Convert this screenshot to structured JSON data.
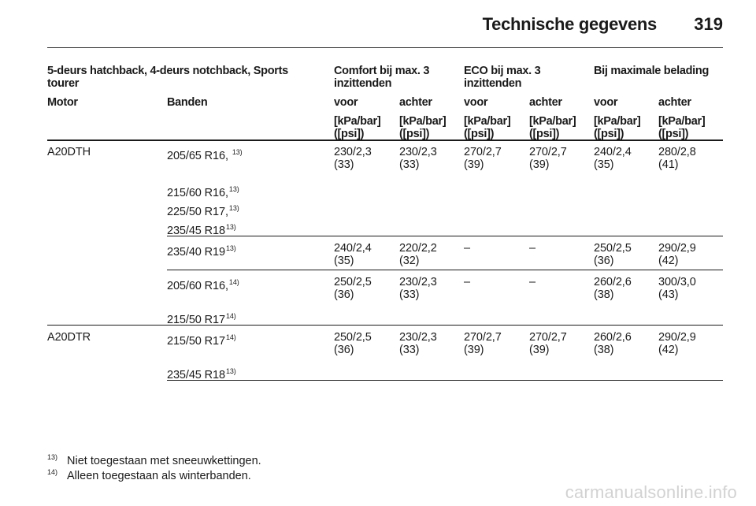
{
  "header": {
    "title": "Technische gegevens",
    "page_number": "319"
  },
  "table": {
    "group_headers": {
      "vehicle": "5-deurs hatchback, 4-deurs notchback, Sports tourer",
      "comfort": "Comfort bij max. 3 inzittenden",
      "eco": "ECO bij max. 3 inzittenden",
      "max_load": "Bij maximale belading"
    },
    "column_headers": {
      "motor": "Motor",
      "banden": "Banden",
      "voor": "voor",
      "achter": "achter",
      "unit": "[kPa/bar] ([psi])"
    },
    "rows": [
      {
        "motor": "A20DTH",
        "tyre": "205/65 R16, ",
        "fn": "13)",
        "c_v": "230/2,3 (33)",
        "c_a": "230/2,3 (33)",
        "e_v": "270/2,7 (39)",
        "e_a": "270/2,7 (39)",
        "m_v": "240/2,4 (35)",
        "m_a": "280/2,8 (41)"
      },
      {
        "tyre": "215/60 R16,",
        "fn": "13)"
      },
      {
        "tyre": "225/50 R17,",
        "fn": "13)"
      },
      {
        "tyre": "235/45 R18",
        "fn": "13)"
      },
      {
        "tyre": "235/40 R19",
        "fn": "13)",
        "c_v": "240/2,4 (35)",
        "c_a": "220/2,2 (32)",
        "e_v": "–",
        "e_a": "–",
        "m_v": "250/2,5 (36)",
        "m_a": "290/2,9 (42)"
      },
      {
        "tyre": "205/60 R16,",
        "fn": "14)",
        "c_v": "250/2,5 (36)",
        "c_a": "230/2,3 (33)",
        "e_v": "–",
        "e_a": "–",
        "m_v": "260/2,6 (38)",
        "m_a": "300/3,0 (43)"
      },
      {
        "tyre": "215/50 R17",
        "fn": "14)"
      },
      {
        "motor": "A20DTR",
        "tyre": "215/50 R17",
        "fn": "14)",
        "c_v": "250/2,5 (36)",
        "c_a": "230/2,3 (33)",
        "e_v": "270/2,7 (39)",
        "e_a": "270/2,7 (39)",
        "m_v": "260/2,6 (38)",
        "m_a": "290/2,9 (42)"
      },
      {
        "tyre": "235/45 R18",
        "fn": "13)"
      }
    ]
  },
  "footnotes": [
    {
      "mark": "13)",
      "text": "Niet toegestaan met sneeuwkettingen."
    },
    {
      "mark": "14)",
      "text": "Alleen toegestaan als winterbanden."
    }
  ],
  "watermark": "carmanualsonline.info"
}
